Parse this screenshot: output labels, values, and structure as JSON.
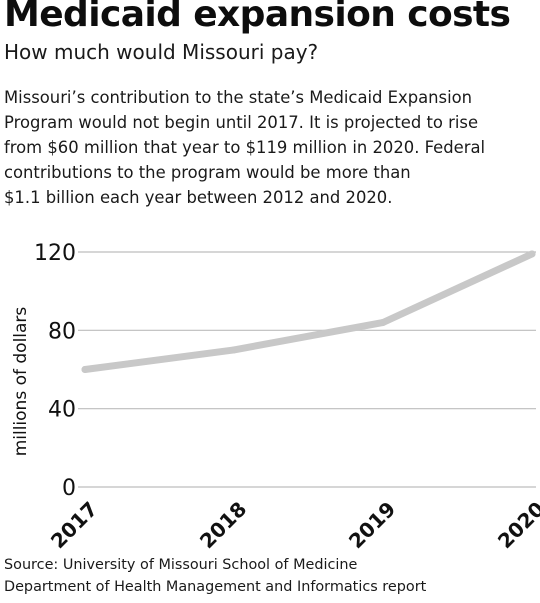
{
  "header": {
    "title": "Medicaid expansion costs",
    "subtitle": "How much would Missouri pay?"
  },
  "description": [
    "Missouri’s contribution to the state’s Medicaid Expansion",
    "Program would not begin until 2017. It is projected to rise",
    "from $60 million that year to $119 million in 2020. Federal",
    "contributions to the program would be more than",
    "$1.1 billion each year between 2012 and 2020."
  ],
  "source": [
    "Source: University of Missouri School of Medicine",
    "Department of Health Management and Informatics report"
  ],
  "colors": {
    "line": "#c8c8c8",
    "grid": "#bdbdbd",
    "text": "#111111"
  },
  "chart_data": {
    "type": "line",
    "title": "",
    "xlabel": "",
    "ylabel": "millions of dollars",
    "categories": [
      "2017",
      "2018",
      "2019",
      "2020"
    ],
    "series": [
      {
        "values": [
          60,
          70,
          84,
          119
        ]
      }
    ],
    "ylim": [
      0,
      120
    ],
    "yticks": [
      0,
      40,
      80,
      120
    ],
    "grid": true,
    "legend": "none"
  }
}
